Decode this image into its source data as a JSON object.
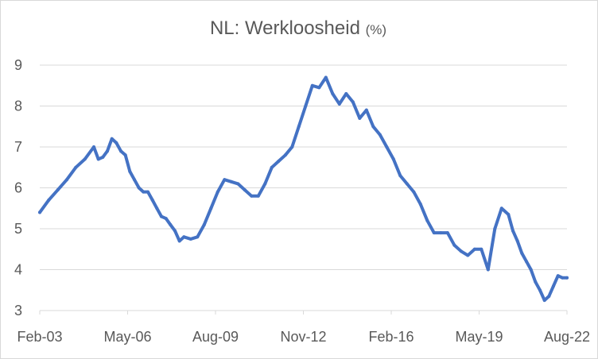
{
  "chart_data": {
    "type": "line",
    "title": "NL: Werkloosheid",
    "title_unit": "(%)",
    "xlabel": "",
    "ylabel": "",
    "x_tick_labels": [
      "Feb-03",
      "May-06",
      "Aug-09",
      "Nov-12",
      "Feb-16",
      "May-19",
      "Aug-22"
    ],
    "x_ticks": [
      "2003-02",
      "2006-05",
      "2009-08",
      "2012-11",
      "2016-02",
      "2019-05",
      "2022-08"
    ],
    "xlim": [
      "2003-02",
      "2022-08"
    ],
    "ylim": [
      3,
      9
    ],
    "y_ticks": [
      3,
      4,
      5,
      6,
      7,
      8,
      9
    ],
    "grid": "horizontal",
    "legend": "none",
    "colors": {
      "line": "#4472c4",
      "grid": "#d9d9d9",
      "text": "#595959"
    },
    "series": [
      {
        "x": [
          "2003-02",
          "2003-06",
          "2003-10",
          "2004-02",
          "2004-06",
          "2004-10",
          "2005-02",
          "2005-04",
          "2005-06",
          "2005-08",
          "2005-10",
          "2005-12",
          "2006-02",
          "2006-04",
          "2006-06",
          "2006-08",
          "2006-10",
          "2006-12",
          "2007-02",
          "2007-04",
          "2007-06",
          "2007-08",
          "2007-10",
          "2007-12",
          "2008-02",
          "2008-04",
          "2008-06",
          "2008-09",
          "2008-12",
          "2009-03",
          "2009-06",
          "2009-09",
          "2009-12",
          "2010-03",
          "2010-06",
          "2010-09",
          "2010-12",
          "2011-03",
          "2011-06",
          "2011-09",
          "2011-12",
          "2012-03",
          "2012-06",
          "2012-09",
          "2012-12",
          "2013-03",
          "2013-06",
          "2013-09",
          "2013-12",
          "2014-03",
          "2014-06",
          "2014-09",
          "2014-12",
          "2015-03",
          "2015-06",
          "2015-09",
          "2015-12",
          "2016-03",
          "2016-06",
          "2016-09",
          "2016-12",
          "2017-03",
          "2017-06",
          "2017-09",
          "2017-12",
          "2018-03",
          "2018-06",
          "2018-09",
          "2018-12",
          "2019-03",
          "2019-06",
          "2019-09",
          "2019-12",
          "2020-03",
          "2020-06",
          "2020-08",
          "2020-10",
          "2020-12",
          "2021-02",
          "2021-04",
          "2021-06",
          "2021-08",
          "2021-10",
          "2021-12",
          "2022-02",
          "2022-04",
          "2022-06",
          "2022-08"
        ],
        "values": [
          5.4,
          5.7,
          5.95,
          6.2,
          6.5,
          6.7,
          7.0,
          6.7,
          6.75,
          6.9,
          7.2,
          7.1,
          6.9,
          6.8,
          6.4,
          6.2,
          6.0,
          5.9,
          5.9,
          5.7,
          5.5,
          5.3,
          5.25,
          5.1,
          4.95,
          4.7,
          4.8,
          4.75,
          4.8,
          5.1,
          5.5,
          5.9,
          6.2,
          6.15,
          6.1,
          5.95,
          5.8,
          5.8,
          6.1,
          6.5,
          6.65,
          6.8,
          7.0,
          7.5,
          8.0,
          8.5,
          8.45,
          8.7,
          8.3,
          8.05,
          8.3,
          8.1,
          7.7,
          7.9,
          7.5,
          7.3,
          7.0,
          6.7,
          6.3,
          6.1,
          5.9,
          5.6,
          5.2,
          4.9,
          4.9,
          4.9,
          4.6,
          4.45,
          4.35,
          4.5,
          4.5,
          4.0,
          5.0,
          5.5,
          5.35,
          4.95,
          4.7,
          4.4,
          4.2,
          4.0,
          3.7,
          3.5,
          3.25,
          3.35,
          3.6,
          3.85,
          3.8,
          3.8
        ]
      }
    ]
  }
}
